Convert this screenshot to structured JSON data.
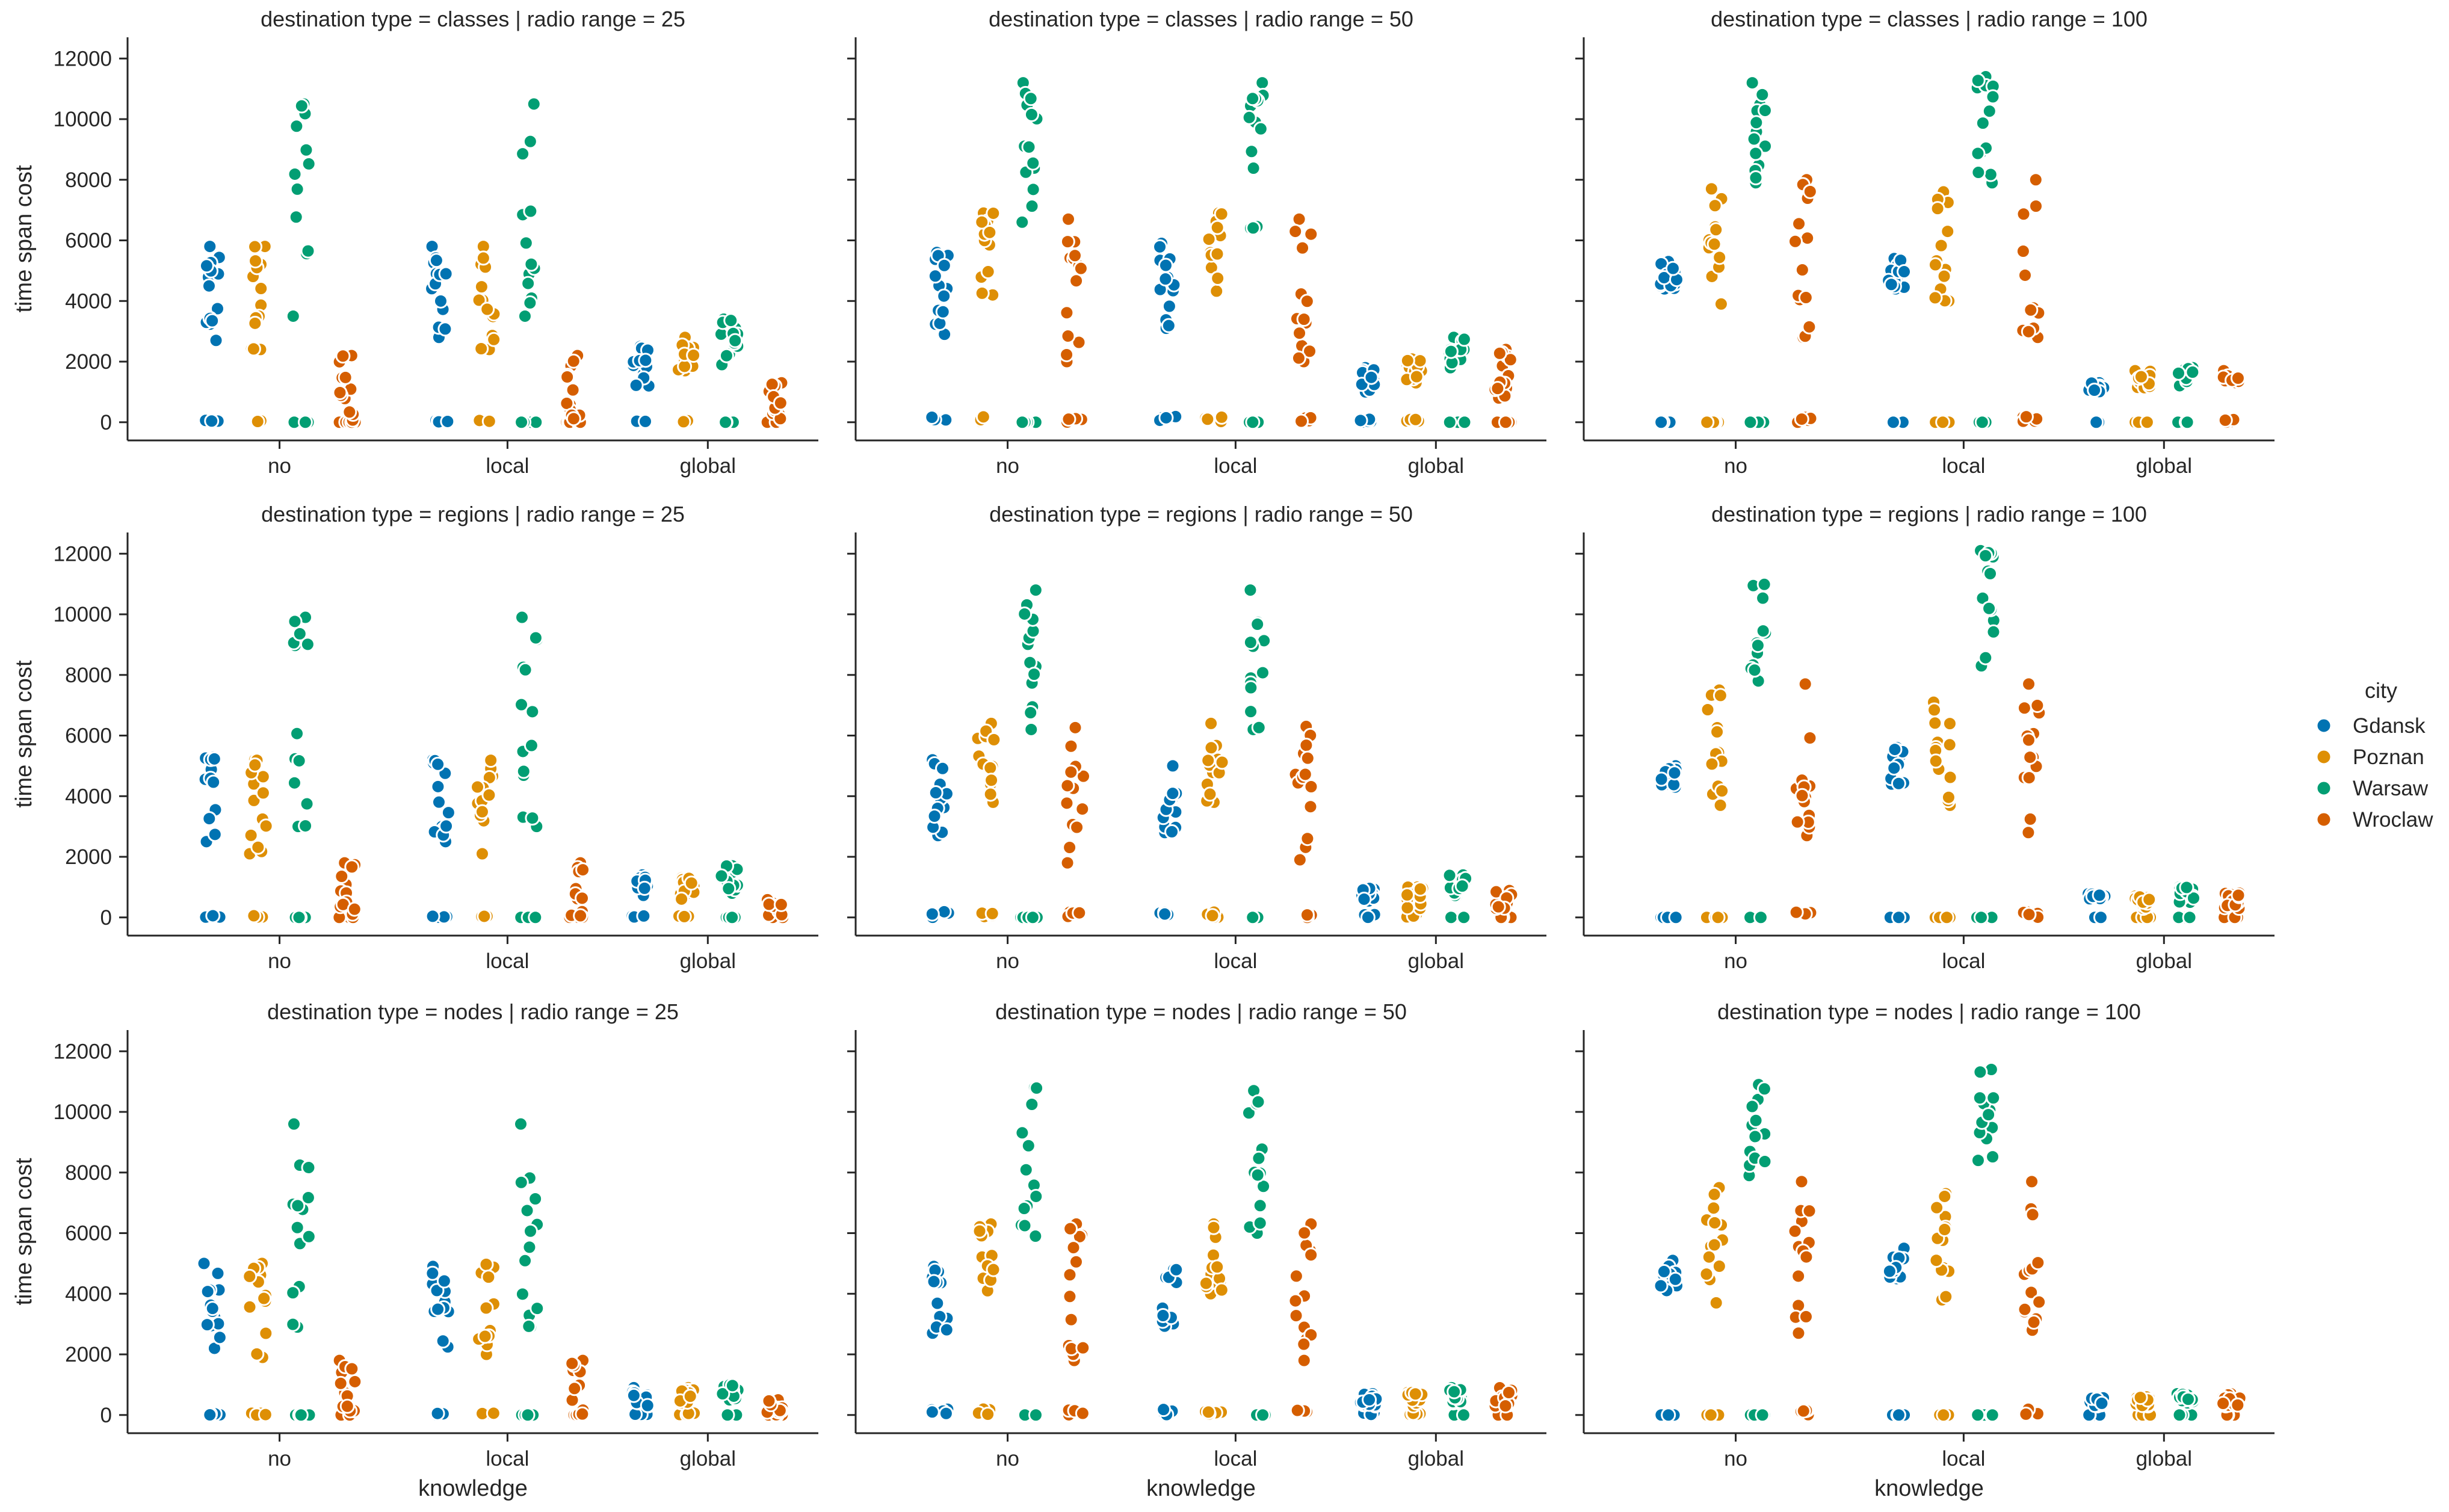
{
  "chart_data": {
    "type": "scatter",
    "subtype": "strip plot, faceted grid",
    "grid": false,
    "legend_position": "right",
    "legend": {
      "title": "city",
      "entries": [
        "Gdansk",
        "Poznan",
        "Warsaw",
        "Wroclaw"
      ]
    },
    "colors": {
      "Gdansk": "#0173b2",
      "Poznan": "#de8f05",
      "Warsaw": "#029e73",
      "Wroclaw": "#d55e00"
    },
    "xlabel": "knowledge",
    "ylabel": "time span cost",
    "categories": [
      "no",
      "local",
      "global"
    ],
    "ylim": [
      -600,
      12700
    ],
    "yticks": [
      0,
      2000,
      4000,
      6000,
      8000,
      10000,
      12000
    ],
    "ytick_labels": [
      "0",
      "2000",
      "4000",
      "6000",
      "8000",
      "10000",
      "12000"
    ],
    "facets": [
      {
        "title": "destination type = classes | radio range = 25",
        "series": [
          {
            "name": "Gdansk",
            "values": [
              [
                0,
                5800,
                60,
                2700
              ],
              [
                0,
                5800,
                60,
                2800
              ],
              [
                0,
                2500,
                60,
                1200
              ]
            ]
          },
          {
            "name": "Poznan",
            "values": [
              [
                0,
                5800,
                60,
                2400
              ],
              [
                0,
                5800,
                60,
                2400
              ],
              [
                0,
                2800,
                60,
                1700
              ]
            ]
          },
          {
            "name": "Warsaw",
            "values": [
              [
                0,
                10500,
                0,
                3500
              ],
              [
                0,
                10500,
                0,
                3500
              ],
              [
                0,
                3400,
                0,
                1900
              ]
            ]
          },
          {
            "name": "Wroclaw",
            "values": [
              [
                0,
                2200,
                0,
                0
              ],
              [
                0,
                2200,
                0,
                0
              ],
              [
                0,
                1300,
                0,
                0
              ]
            ]
          }
        ]
      },
      {
        "title": "destination type = classes | radio range = 50",
        "series": [
          {
            "name": "Gdansk",
            "values": [
              [
                0,
                5600,
                200,
                2900
              ],
              [
                0,
                5900,
                200,
                3100
              ],
              [
                0,
                1800,
                100,
                1000
              ]
            ]
          },
          {
            "name": "Poznan",
            "values": [
              [
                0,
                6900,
                200,
                4200
              ],
              [
                0,
                6900,
                200,
                4300
              ],
              [
                0,
                2100,
                100,
                1300
              ]
            ]
          },
          {
            "name": "Warsaw",
            "values": [
              [
                0,
                11200,
                0,
                6600
              ],
              [
                0,
                11200,
                0,
                6400
              ],
              [
                0,
                2800,
                0,
                1800
              ]
            ]
          },
          {
            "name": "Wroclaw",
            "values": [
              [
                0,
                6700,
                200,
                2000
              ],
              [
                0,
                6700,
                200,
                2000
              ],
              [
                0,
                2400,
                0,
                800
              ]
            ]
          }
        ]
      },
      {
        "title": "destination type = classes | radio range = 100",
        "series": [
          {
            "name": "Gdansk",
            "values": [
              [
                0,
                5300,
                0,
                4400
              ],
              [
                0,
                5400,
                0,
                4400
              ],
              [
                0,
                1300,
                0,
                1000
              ]
            ]
          },
          {
            "name": "Poznan",
            "values": [
              [
                0,
                7700,
                0,
                3900
              ],
              [
                0,
                7600,
                0,
                4000
              ],
              [
                0,
                1700,
                0,
                1100
              ]
            ]
          },
          {
            "name": "Warsaw",
            "values": [
              [
                0,
                11200,
                0,
                7900
              ],
              [
                0,
                11400,
                0,
                7900
              ],
              [
                0,
                1800,
                0,
                1200
              ]
            ]
          },
          {
            "name": "Wroclaw",
            "values": [
              [
                0,
                8000,
                200,
                2800
              ],
              [
                0,
                8000,
                200,
                2800
              ],
              [
                0,
                1700,
                100,
                1300
              ]
            ]
          }
        ]
      },
      {
        "title": "destination type = regions | radio range = 25",
        "series": [
          {
            "name": "Gdansk",
            "values": [
              [
                0,
                5300,
                60,
                2500
              ],
              [
                0,
                5200,
                60,
                2500
              ],
              [
                0,
                1400,
                60,
                700
              ]
            ]
          },
          {
            "name": "Poznan",
            "values": [
              [
                0,
                5200,
                60,
                2100
              ],
              [
                0,
                5200,
                60,
                2100
              ],
              [
                0,
                1300,
                60,
                600
              ]
            ]
          },
          {
            "name": "Warsaw",
            "values": [
              [
                0,
                9900,
                0,
                3000
              ],
              [
                0,
                9900,
                0,
                3000
              ],
              [
                0,
                1700,
                0,
                800
              ]
            ]
          },
          {
            "name": "Wroclaw",
            "values": [
              [
                0,
                1800,
                0,
                0
              ],
              [
                0,
                1800,
                0,
                0
              ],
              [
                0,
                600,
                0,
                0
              ]
            ]
          }
        ]
      },
      {
        "title": "destination type = regions | radio range = 50",
        "series": [
          {
            "name": "Gdansk",
            "values": [
              [
                0,
                5200,
                200,
                2700
              ],
              [
                0,
                5000,
                200,
                2800
              ],
              [
                0,
                1000,
                100,
                500
              ]
            ]
          },
          {
            "name": "Poznan",
            "values": [
              [
                0,
                6400,
                200,
                3800
              ],
              [
                0,
                6400,
                200,
                3800
              ],
              [
                0,
                1000,
                100,
                300
              ]
            ]
          },
          {
            "name": "Warsaw",
            "values": [
              [
                0,
                10800,
                0,
                6200
              ],
              [
                0,
                10800,
                0,
                6200
              ],
              [
                0,
                1400,
                0,
                700
              ]
            ]
          },
          {
            "name": "Wroclaw",
            "values": [
              [
                0,
                6300,
                200,
                1800
              ],
              [
                0,
                6300,
                200,
                1900
              ],
              [
                0,
                900,
                0,
                300
              ]
            ]
          }
        ]
      },
      {
        "title": "destination type = regions | radio range = 100",
        "series": [
          {
            "name": "Gdansk",
            "values": [
              [
                0,
                5000,
                0,
                4300
              ],
              [
                0,
                5600,
                0,
                4400
              ],
              [
                0,
                800,
                0,
                600
              ]
            ]
          },
          {
            "name": "Poznan",
            "values": [
              [
                0,
                7500,
                0,
                3700
              ],
              [
                0,
                7100,
                0,
                3700
              ],
              [
                0,
                700,
                0,
                300
              ]
            ]
          },
          {
            "name": "Warsaw",
            "values": [
              [
                0,
                11000,
                0,
                7800
              ],
              [
                0,
                12100,
                0,
                8300
              ],
              [
                0,
                1000,
                0,
                500
              ]
            ]
          },
          {
            "name": "Wroclaw",
            "values": [
              [
                0,
                7700,
                200,
                2700
              ],
              [
                0,
                7700,
                200,
                2800
              ],
              [
                0,
                800,
                0,
                300
              ]
            ]
          }
        ]
      },
      {
        "title": "destination type = nodes | radio range = 25",
        "series": [
          {
            "name": "Gdansk",
            "values": [
              [
                0,
                5000,
                60,
                2200
              ],
              [
                0,
                4900,
                60,
                2200
              ],
              [
                0,
                900,
                60,
                300
              ]
            ]
          },
          {
            "name": "Poznan",
            "values": [
              [
                0,
                5000,
                60,
                1900
              ],
              [
                0,
                5000,
                60,
                2000
              ],
              [
                0,
                900,
                60,
                400
              ]
            ]
          },
          {
            "name": "Warsaw",
            "values": [
              [
                0,
                9600,
                0,
                2900
              ],
              [
                0,
                9600,
                0,
                2900
              ],
              [
                0,
                1000,
                0,
                500
              ]
            ]
          },
          {
            "name": "Wroclaw",
            "values": [
              [
                0,
                1800,
                0,
                0
              ],
              [
                0,
                1800,
                0,
                0
              ],
              [
                0,
                500,
                0,
                0
              ]
            ]
          }
        ]
      },
      {
        "title": "destination type = nodes | radio range = 50",
        "series": [
          {
            "name": "Gdansk",
            "values": [
              [
                0,
                4900,
                200,
                2700
              ],
              [
                0,
                4800,
                200,
                2900
              ],
              [
                0,
                700,
                100,
                300
              ]
            ]
          },
          {
            "name": "Poznan",
            "values": [
              [
                0,
                6300,
                200,
                4100
              ],
              [
                0,
                6300,
                200,
                4000
              ],
              [
                0,
                800,
                100,
                300
              ]
            ]
          },
          {
            "name": "Warsaw",
            "values": [
              [
                0,
                10800,
                0,
                5900
              ],
              [
                0,
                10700,
                0,
                6000
              ],
              [
                0,
                900,
                0,
                400
              ]
            ]
          },
          {
            "name": "Wroclaw",
            "values": [
              [
                0,
                6300,
                200,
                1800
              ],
              [
                0,
                6300,
                200,
                1800
              ],
              [
                0,
                900,
                0,
                300
              ]
            ]
          }
        ]
      },
      {
        "title": "destination type = nodes | radio range = 100",
        "series": [
          {
            "name": "Gdansk",
            "values": [
              [
                0,
                5100,
                0,
                4100
              ],
              [
                0,
                5500,
                0,
                4500
              ],
              [
                0,
                600,
                0,
                300
              ]
            ]
          },
          {
            "name": "Poznan",
            "values": [
              [
                0,
                7500,
                0,
                3700
              ],
              [
                0,
                7300,
                0,
                3800
              ],
              [
                0,
                600,
                0,
                300
              ]
            ]
          },
          {
            "name": "Warsaw",
            "values": [
              [
                0,
                10900,
                0,
                7900
              ],
              [
                0,
                11400,
                0,
                8400
              ],
              [
                0,
                700,
                0,
                400
              ]
            ]
          },
          {
            "name": "Wroclaw",
            "values": [
              [
                0,
                7700,
                200,
                2700
              ],
              [
                0,
                7700,
                200,
                2800
              ],
              [
                0,
                700,
                0,
                300
              ]
            ]
          }
        ]
      }
    ],
    "value_format": "each [a,b,c,d] = [min, max, low-cluster max, main-cluster min] per city and knowledge level"
  }
}
